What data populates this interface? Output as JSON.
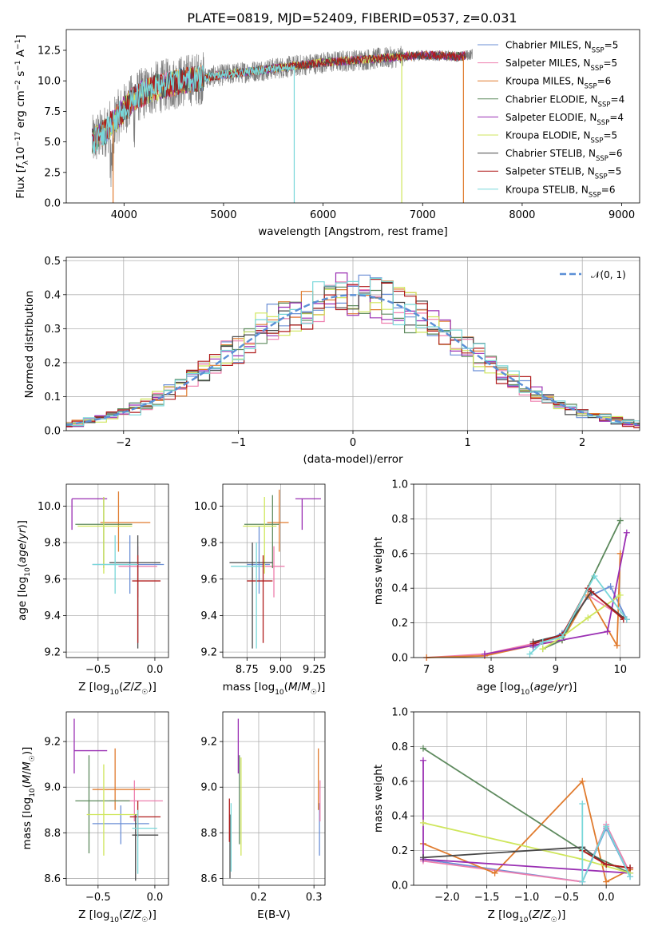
{
  "figure": {
    "title": "PLATE=0819, MJD=52409, FIBERID=0537, z=0.031"
  },
  "models": [
    {
      "label": "Chabrier MILES, N_SSP=5",
      "color": "#6b8fd6"
    },
    {
      "label": "Salpeter MILES, N_SSP=5",
      "color": "#ee7fae"
    },
    {
      "label": "Kroupa MILES, N_SSP=6",
      "color": "#e07b2e"
    },
    {
      "label": "Chabrier ELODIE, N_SSP=4",
      "color": "#5e8a5e"
    },
    {
      "label": "Salpeter ELODIE, N_SSP=4",
      "color": "#9a2fb3"
    },
    {
      "label": "Kroupa ELODIE, N_SSP=5",
      "color": "#cfe65c"
    },
    {
      "label": "Chabrier STELIB, N_SSP=6",
      "color": "#4a4a4a"
    },
    {
      "label": "Salpeter STELIB, N_SSP=5",
      "color": "#b01c1c"
    },
    {
      "label": "Kroupa STELIB, N_SSP=6",
      "color": "#78d7d9"
    }
  ],
  "chart_data": [
    {
      "id": "spectrum",
      "type": "line",
      "xlabel": "wavelength [Angstrom, rest frame]",
      "ylabel": "Flux [f_λ 10^-17 erg cm^-2 s^-1 A^-1]",
      "xlim": [
        3420,
        9180
      ],
      "ylim": [
        0,
        14.2
      ],
      "xticks": [
        4000,
        5000,
        6000,
        7000,
        8000,
        9000
      ],
      "yticks": [
        0.0,
        2.5,
        5.0,
        7.5,
        10.0,
        12.5
      ],
      "ytick_labels": [
        "0.0",
        "2.5",
        "5.0",
        "7.5",
        "10.0",
        "12.5"
      ],
      "data_color": "#7f7f7f",
      "continuum": [
        [
          3680,
          5.0
        ],
        [
          3800,
          5.8
        ],
        [
          3950,
          7.2
        ],
        [
          4100,
          8.6
        ],
        [
          4300,
          9.4
        ],
        [
          4600,
          10.0
        ],
        [
          5000,
          10.5
        ],
        [
          5500,
          11.0
        ],
        [
          6000,
          11.5
        ],
        [
          6500,
          11.8
        ],
        [
          7000,
          12.1
        ],
        [
          7400,
          12.0
        ],
        [
          7500,
          12.2
        ]
      ],
      "model_cutoffs_angstrom": [
        7430,
        7430,
        7430,
        7430,
        7430,
        6790,
        7430,
        7430,
        5710
      ],
      "drop_models": [
        {
          "model": 2,
          "x": 7410
        },
        {
          "model": 5,
          "x": 6790
        },
        {
          "model": 8,
          "x": 5710
        },
        {
          "model": 2,
          "x": 3890
        }
      ],
      "grid": false,
      "legend": "top-right"
    },
    {
      "id": "residuals",
      "type": "histogram",
      "xlabel": "(data-model)/error",
      "ylabel": "Normed distribution",
      "xlim": [
        -2.5,
        2.5
      ],
      "ylim": [
        0,
        0.51
      ],
      "xticks": [
        -2,
        -1,
        0,
        1,
        2
      ],
      "xtick_labels": [
        "−2",
        "−1",
        "0",
        "1",
        "2"
      ],
      "yticks": [
        0.0,
        0.1,
        0.2,
        0.3,
        0.4,
        0.5
      ],
      "ytick_labels": [
        "0.0",
        "0.1",
        "0.2",
        "0.3",
        "0.4",
        "0.5"
      ],
      "bin_width": 0.1,
      "reference_label": "𝒩(0, 1)",
      "reference_color": "#5b8fd6",
      "grid": true,
      "legend": "top-right"
    },
    {
      "id": "age-vs-Z",
      "type": "errorbar",
      "xlabel": "Z [log10(Z/Z☉)]",
      "ylabel": "age [log10(age/yr)]",
      "xlim": [
        -0.78,
        0.12
      ],
      "ylim": [
        9.17,
        10.12
      ],
      "xticks": [
        -0.5,
        0.0
      ],
      "xtick_labels": [
        "−0.5",
        "0.0"
      ],
      "yticks": [
        9.2,
        9.4,
        9.6,
        9.8,
        10.0
      ],
      "ytick_labels": [
        "9.2",
        "9.4",
        "9.6",
        "9.8",
        "10.0"
      ],
      "points": [
        {
          "x": -0.22,
          "xlo": -0.55,
          "xhi": 0.08,
          "y": 9.68,
          "ylo": 9.52,
          "yhi": 9.84
        },
        {
          "x": -0.15,
          "xlo": -0.32,
          "xhi": 0.02,
          "y": 9.67,
          "ylo": 9.5,
          "yhi": 9.78
        },
        {
          "x": -0.32,
          "xlo": -0.48,
          "xhi": -0.04,
          "y": 9.91,
          "ylo": 9.75,
          "yhi": 10.08
        },
        {
          "x": -0.45,
          "xlo": -0.7,
          "xhi": -0.2,
          "y": 9.9,
          "ylo": 9.66,
          "yhi": 10.05
        },
        {
          "x": -0.73,
          "xlo": -0.73,
          "xhi": -0.42,
          "y": 10.04,
          "ylo": 9.87,
          "yhi": 10.04
        },
        {
          "x": -0.45,
          "xlo": -0.68,
          "xhi": -0.2,
          "y": 9.89,
          "ylo": 9.63,
          "yhi": 10.05
        },
        {
          "x": -0.15,
          "xlo": -0.4,
          "xhi": 0.05,
          "y": 9.69,
          "ylo": 9.22,
          "yhi": 9.84
        },
        {
          "x": -0.15,
          "xlo": -0.2,
          "xhi": 0.05,
          "y": 9.59,
          "ylo": 9.25,
          "yhi": 9.73
        },
        {
          "x": -0.35,
          "xlo": -0.55,
          "xhi": -0.15,
          "y": 9.68,
          "ylo": 9.52,
          "yhi": 9.84
        }
      ],
      "grid": true
    },
    {
      "id": "age-vs-mass",
      "type": "errorbar",
      "xlabel": "mass [log10(M/M☉)]",
      "ylabel": "",
      "xlim": [
        8.57,
        9.33
      ],
      "ylim": [
        9.17,
        10.12
      ],
      "xticks": [
        8.75,
        9.0,
        9.25
      ],
      "xtick_labels": [
        "8.75",
        "9.00",
        "9.25"
      ],
      "yticks": [
        9.2,
        9.4,
        9.6,
        9.8,
        10.0
      ],
      "ytick_labels": [
        "9.2",
        "9.4",
        "9.6",
        "9.8",
        "10.0"
      ],
      "points": [
        {
          "x": 8.84,
          "xlo": 8.75,
          "xhi": 8.92,
          "y": 9.68,
          "ylo": 9.52,
          "yhi": 9.89
        },
        {
          "x": 8.95,
          "xlo": 8.85,
          "xhi": 9.03,
          "y": 9.67,
          "ylo": 9.5,
          "yhi": 9.78
        },
        {
          "x": 8.99,
          "xlo": 8.9,
          "xhi": 9.06,
          "y": 9.91,
          "ylo": 9.75,
          "yhi": 10.09
        },
        {
          "x": 8.94,
          "xlo": 8.73,
          "xhi": 8.99,
          "y": 9.9,
          "ylo": 9.66,
          "yhi": 10.06
        },
        {
          "x": 9.16,
          "xlo": 9.11,
          "xhi": 9.3,
          "y": 10.04,
          "ylo": 9.87,
          "yhi": 10.04
        },
        {
          "x": 8.88,
          "xlo": 8.72,
          "xhi": 8.97,
          "y": 9.89,
          "ylo": 9.63,
          "yhi": 10.05
        },
        {
          "x": 8.79,
          "xlo": 8.62,
          "xhi": 8.94,
          "y": 9.69,
          "ylo": 9.22,
          "yhi": 9.8
        },
        {
          "x": 8.87,
          "xlo": 8.75,
          "xhi": 8.94,
          "y": 9.59,
          "ylo": 9.25,
          "yhi": 9.73
        },
        {
          "x": 8.82,
          "xlo": 8.63,
          "xhi": 8.86,
          "y": 9.67,
          "ylo": 9.22,
          "yhi": 9.8
        }
      ],
      "grid": true
    },
    {
      "id": "weight-vs-age",
      "type": "line",
      "xlabel": "age [log10(age/yr)]",
      "ylabel": "mass weight",
      "xlim": [
        6.8,
        10.3
      ],
      "ylim": [
        0,
        1.0
      ],
      "xticks": [
        7,
        8,
        9,
        10
      ],
      "xtick_labels": [
        "7",
        "8",
        "9",
        "10"
      ],
      "yticks": [
        0.0,
        0.2,
        0.4,
        0.6,
        0.8,
        1.0
      ],
      "ytick_labels": [
        "0.0",
        "0.2",
        "0.4",
        "0.6",
        "0.8",
        "1.0"
      ],
      "series": [
        {
          "model": 0,
          "x": [
            8.65,
            9.1,
            9.5,
            9.85,
            10.1
          ],
          "y": [
            0.06,
            0.14,
            0.35,
            0.41,
            0.22
          ]
        },
        {
          "model": 1,
          "x": [
            7.0,
            7.9,
            8.65,
            9.1,
            9.5,
            10.1
          ],
          "y": [
            0.0,
            0.02,
            0.08,
            0.12,
            0.36,
            0.22
          ]
        },
        {
          "model": 2,
          "x": [
            7.0,
            7.9,
            8.65,
            9.1,
            9.5,
            9.95,
            10.0
          ],
          "y": [
            0.0,
            0.01,
            0.07,
            0.1,
            0.36,
            0.07,
            0.6
          ]
        },
        {
          "model": 3,
          "x": [
            8.8,
            9.1,
            10.0
          ],
          "y": [
            0.05,
            0.1,
            0.79
          ]
        },
        {
          "model": 4,
          "x": [
            7.9,
            8.65,
            9.8,
            10.1
          ],
          "y": [
            0.02,
            0.07,
            0.15,
            0.72
          ]
        },
        {
          "model": 5,
          "x": [
            8.8,
            9.1,
            9.5,
            10.0
          ],
          "y": [
            0.05,
            0.12,
            0.23,
            0.36
          ]
        },
        {
          "model": 6,
          "x": [
            8.65,
            9.1,
            9.55,
            10.05
          ],
          "y": [
            0.09,
            0.13,
            0.38,
            0.23
          ]
        },
        {
          "model": 7,
          "x": [
            8.65,
            9.1,
            9.5,
            10.05
          ],
          "y": [
            0.08,
            0.13,
            0.4,
            0.22
          ]
        },
        {
          "model": 8,
          "x": [
            8.6,
            8.8,
            9.1,
            9.6,
            10.1
          ],
          "y": [
            0.02,
            0.09,
            0.12,
            0.47,
            0.22
          ]
        }
      ],
      "grid": true
    },
    {
      "id": "mass-vs-Z",
      "type": "errorbar",
      "xlabel": "Z [log10(Z/Z☉)]",
      "ylabel": "mass [log10(M/M☉)]",
      "xlim": [
        -0.78,
        0.12
      ],
      "ylim": [
        8.57,
        9.33
      ],
      "xticks": [
        -0.5,
        0.0
      ],
      "xtick_labels": [
        "−0.5",
        "0.0"
      ],
      "yticks": [
        8.6,
        8.8,
        9.0,
        9.2
      ],
      "ytick_labels": [
        "8.6",
        "8.8",
        "9.0",
        "9.2"
      ],
      "points": [
        {
          "x": -0.3,
          "xlo": -0.55,
          "xhi": -0.05,
          "y": 8.84,
          "ylo": 8.75,
          "yhi": 8.92
        },
        {
          "x": -0.18,
          "xlo": -0.4,
          "xhi": 0.07,
          "y": 8.94,
          "ylo": 8.85,
          "yhi": 9.03
        },
        {
          "x": -0.35,
          "xlo": -0.55,
          "xhi": -0.04,
          "y": 8.99,
          "ylo": 8.9,
          "yhi": 9.17
        },
        {
          "x": -0.58,
          "xlo": -0.7,
          "xhi": -0.22,
          "y": 8.94,
          "ylo": 8.71,
          "yhi": 9.14
        },
        {
          "x": -0.71,
          "xlo": -0.71,
          "xhi": -0.42,
          "y": 9.16,
          "ylo": 9.06,
          "yhi": 9.3
        },
        {
          "x": -0.45,
          "xlo": -0.6,
          "xhi": -0.15,
          "y": 8.88,
          "ylo": 8.7,
          "yhi": 9.1
        },
        {
          "x": -0.17,
          "xlo": -0.2,
          "xhi": 0.03,
          "y": 8.79,
          "ylo": 8.59,
          "yhi": 8.88
        },
        {
          "x": -0.15,
          "xlo": -0.22,
          "xhi": 0.05,
          "y": 8.87,
          "ylo": 8.78,
          "yhi": 8.94
        },
        {
          "x": -0.15,
          "xlo": -0.2,
          "xhi": 0.02,
          "y": 8.82,
          "ylo": 8.62,
          "yhi": 8.9
        }
      ],
      "grid": true
    },
    {
      "id": "mass-vs-ebv",
      "type": "errorbar",
      "xlabel": "E(B-V)",
      "ylabel": "",
      "xlim": [
        0.135,
        0.32
      ],
      "ylim": [
        8.57,
        9.33
      ],
      "xticks": [
        0.2,
        0.3
      ],
      "xtick_labels": [
        "0.2",
        "0.3"
      ],
      "yticks": [
        8.6,
        8.8,
        9.0,
        9.2
      ],
      "ytick_labels": [
        "8.6",
        "8.8",
        "9.0",
        "9.2"
      ],
      "points": [
        {
          "x": 0.31,
          "xlo": 0.31,
          "xhi": 0.31,
          "y": 8.84,
          "ylo": 8.7,
          "yhi": 8.93
        },
        {
          "x": 0.311,
          "xlo": 0.311,
          "xhi": 0.311,
          "y": 8.93,
          "ylo": 8.85,
          "yhi": 9.03
        },
        {
          "x": 0.308,
          "xlo": 0.308,
          "xhi": 0.308,
          "y": 9.01,
          "ylo": 8.9,
          "yhi": 9.17
        },
        {
          "x": 0.165,
          "xlo": 0.165,
          "xhi": 0.165,
          "y": 8.94,
          "ylo": 8.75,
          "yhi": 9.14
        },
        {
          "x": 0.163,
          "xlo": 0.163,
          "xhi": 0.163,
          "y": 9.16,
          "ylo": 9.06,
          "yhi": 9.3
        },
        {
          "x": 0.168,
          "xlo": 0.168,
          "xhi": 0.168,
          "y": 8.95,
          "ylo": 8.7,
          "yhi": 9.13
        },
        {
          "x": 0.148,
          "xlo": 0.148,
          "xhi": 0.148,
          "y": 8.79,
          "ylo": 8.6,
          "yhi": 8.88
        },
        {
          "x": 0.147,
          "xlo": 0.147,
          "xhi": 0.147,
          "y": 8.87,
          "ylo": 8.76,
          "yhi": 8.95
        },
        {
          "x": 0.15,
          "xlo": 0.15,
          "xhi": 0.15,
          "y": 8.82,
          "ylo": 8.63,
          "yhi": 8.93
        }
      ],
      "grid": true
    },
    {
      "id": "weight-vs-Z",
      "type": "line",
      "xlabel": "Z [log10(Z/Z☉)]",
      "ylabel": "mass weight",
      "xlim": [
        -2.42,
        0.42
      ],
      "ylim": [
        0,
        1.0
      ],
      "xticks": [
        -2.0,
        -1.5,
        -1.0,
        -0.5,
        0.0
      ],
      "xtick_labels": [
        "−2.0",
        "−1.5",
        "−1.0",
        "−0.5",
        "0.0"
      ],
      "yticks": [
        0.0,
        0.2,
        0.4,
        0.6,
        0.8,
        1.0
      ],
      "ytick_labels": [
        "0.0",
        "0.2",
        "0.4",
        "0.6",
        "0.8",
        "1.0"
      ],
      "series": [
        {
          "model": 0,
          "x": [
            -2.3,
            -0.3,
            0.0,
            0.3
          ],
          "y": [
            0.15,
            0.02,
            0.33,
            0.05
          ]
        },
        {
          "model": 1,
          "x": [
            -2.3,
            -0.3,
            0.0,
            0.3
          ],
          "y": [
            0.14,
            0.02,
            0.35,
            0.07
          ]
        },
        {
          "model": 2,
          "x": [
            -2.3,
            -1.4,
            -0.3,
            0.0,
            0.3
          ],
          "y": [
            0.24,
            0.07,
            0.6,
            0.02,
            0.09
          ]
        },
        {
          "model": 3,
          "x": [
            -2.3,
            -0.3,
            0.3
          ],
          "y": [
            0.79,
            0.2,
            0.07
          ]
        },
        {
          "model": 4,
          "x": [
            -2.3,
            -2.3,
            0.3
          ],
          "y": [
            0.72,
            0.15,
            0.07
          ]
        },
        {
          "model": 5,
          "x": [
            -2.3,
            -0.3,
            0.3
          ],
          "y": [
            0.36,
            0.15,
            0.07
          ]
        },
        {
          "model": 6,
          "x": [
            -2.3,
            -0.3,
            0.0,
            0.3
          ],
          "y": [
            0.16,
            0.22,
            0.12,
            0.1
          ]
        },
        {
          "model": 7,
          "x": [
            -0.3,
            0.0,
            0.3
          ],
          "y": [
            0.2,
            0.12,
            0.1
          ]
        },
        {
          "model": 8,
          "x": [
            -0.3,
            -0.3,
            0.0,
            0.3
          ],
          "y": [
            0.47,
            0.02,
            0.34,
            0.05
          ]
        }
      ],
      "grid": true
    }
  ]
}
